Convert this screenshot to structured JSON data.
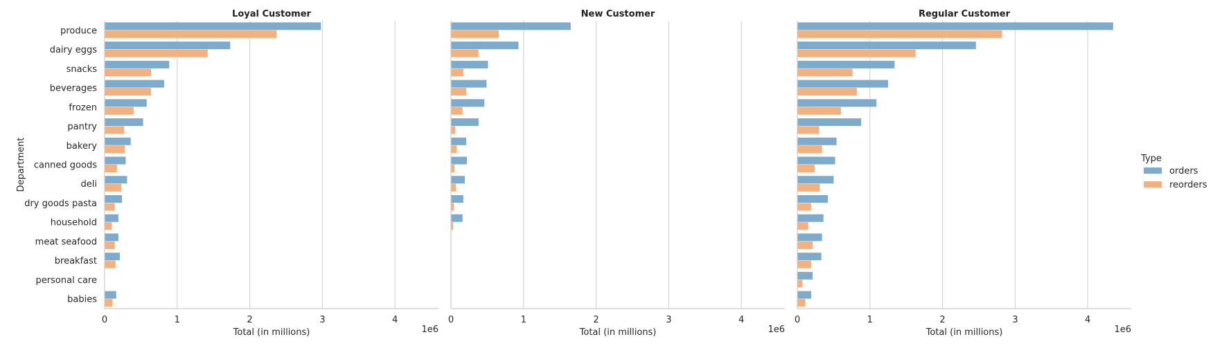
{
  "chart_data": {
    "type": "bar",
    "orientation": "horizontal",
    "ylabel": "Department",
    "xlabel": "Total (in millions)",
    "x_offset_label": "1e6",
    "xlim": [
      0,
      4600000
    ],
    "xticks": [
      0,
      1,
      2,
      3,
      4
    ],
    "grid": "vertical",
    "categories": [
      "produce",
      "dairy eggs",
      "snacks",
      "beverages",
      "frozen",
      "pantry",
      "bakery",
      "canned goods",
      "deli",
      "dry goods pasta",
      "household",
      "meat seafood",
      "breakfast",
      "personal care",
      "babies"
    ],
    "legend": {
      "title": "Type",
      "placement": "right",
      "entries": [
        {
          "name": "orders",
          "color": "#7eaacc"
        },
        {
          "name": "reorders",
          "color": "#f3b17f"
        }
      ]
    },
    "panels": [
      {
        "title": "Loyal Customer",
        "series": [
          {
            "name": "orders",
            "values": [
              2980000,
              1730000,
              890000,
              820000,
              580000,
              530000,
              360000,
              290000,
              310000,
              240000,
              190000,
              190000,
              210000,
              0,
              160000
            ]
          },
          {
            "name": "reorders",
            "values": [
              2370000,
              1420000,
              640000,
              640000,
              400000,
              270000,
              280000,
              170000,
              230000,
              140000,
              100000,
              140000,
              150000,
              0,
              110000
            ]
          }
        ]
      },
      {
        "title": "New Customer",
        "series": [
          {
            "name": "orders",
            "values": [
              1650000,
              930000,
              510000,
              490000,
              460000,
              380000,
              210000,
              220000,
              190000,
              170000,
              160000,
              0,
              0,
              0,
              0
            ]
          },
          {
            "name": "reorders",
            "values": [
              660000,
              380000,
              170000,
              210000,
              160000,
              60000,
              80000,
              50000,
              70000,
              40000,
              30000,
              0,
              0,
              0,
              0
            ]
          }
        ]
      },
      {
        "title": "Regular Customer",
        "series": [
          {
            "name": "orders",
            "values": [
              4350000,
              2460000,
              1340000,
              1250000,
              1090000,
              880000,
              540000,
              520000,
              500000,
              420000,
              360000,
              340000,
              330000,
              210000,
              190000
            ]
          },
          {
            "name": "reorders",
            "values": [
              2820000,
              1630000,
              760000,
              820000,
              600000,
              300000,
              340000,
              240000,
              310000,
              190000,
              150000,
              210000,
              190000,
              70000,
              110000
            ]
          }
        ]
      }
    ]
  }
}
